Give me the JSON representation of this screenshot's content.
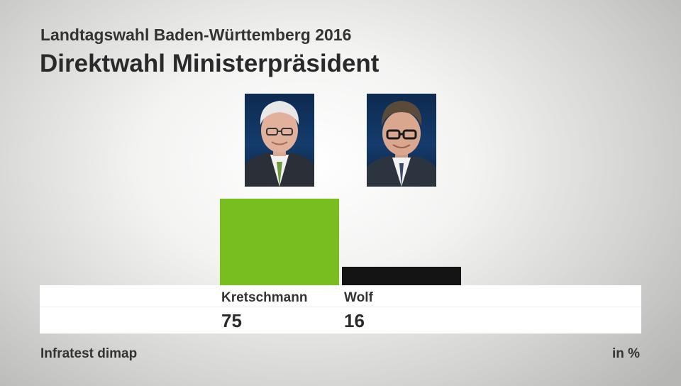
{
  "header": {
    "subtitle": "Landtagswahl Baden-Württemberg 2016",
    "title": "Direktwahl Ministerpräsident"
  },
  "chart_data": {
    "type": "bar",
    "title": "Direktwahl Ministerpräsident",
    "subtitle": "Landtagswahl Baden-Württemberg 2016",
    "categories": [
      "Kretschmann",
      "Wolf"
    ],
    "values": [
      75,
      16
    ],
    "colors": [
      "#78be1e",
      "#141414"
    ],
    "unit": "in %",
    "ylim": [
      0,
      100
    ],
    "grid": false,
    "legend": "none"
  },
  "footer": {
    "source": "Infratest dimap",
    "unit": "in %"
  },
  "images": {
    "portrait_1": "Kretschmann portrait",
    "portrait_2": "Wolf portrait"
  }
}
